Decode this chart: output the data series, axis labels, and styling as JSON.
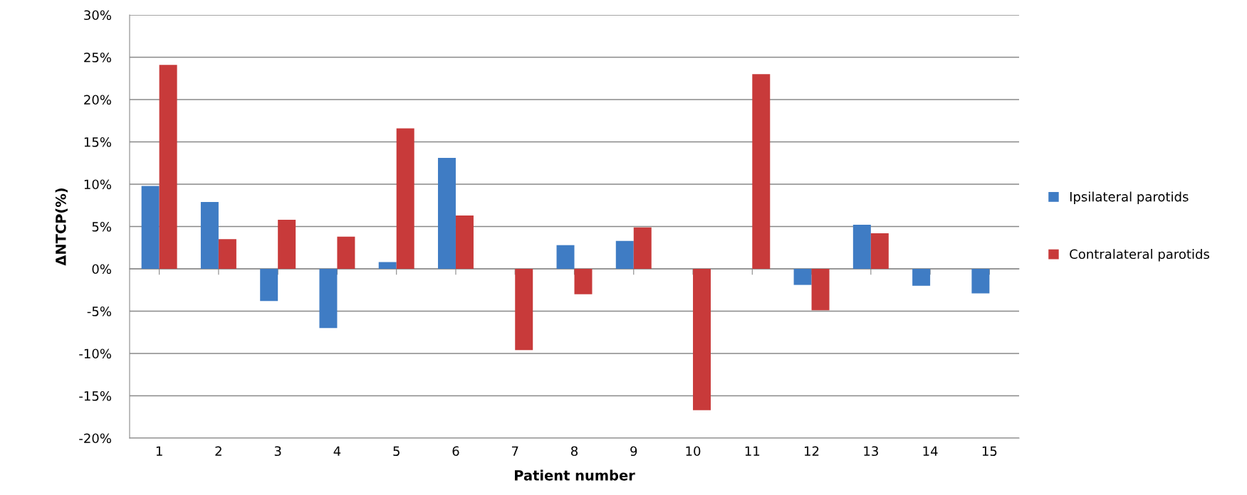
{
  "chart_data": {
    "type": "bar",
    "xlabel": "Patient number",
    "ylabel": "ΔNTCP(%)",
    "categories": [
      "1",
      "2",
      "3",
      "4",
      "5",
      "6",
      "7",
      "8",
      "9",
      "10",
      "11",
      "12",
      "13",
      "14",
      "15"
    ],
    "series": [
      {
        "name": "Ipsilateral parotids",
        "color": "#3f7cc4",
        "values": [
          9.8,
          7.9,
          -3.8,
          -7.0,
          0.8,
          13.1,
          0,
          2.8,
          3.3,
          0,
          0,
          -1.9,
          5.2,
          -2.0,
          -2.9
        ]
      },
      {
        "name": "Contralateral parotids",
        "color": "#c83a3a",
        "values": [
          24.1,
          3.5,
          5.8,
          3.8,
          16.6,
          6.3,
          -9.6,
          -3.0,
          4.9,
          -16.7,
          23.0,
          -4.9,
          4.2,
          0,
          0
        ]
      }
    ],
    "ylim": [
      -20,
      30
    ],
    "yticks": [
      {
        "value": -20,
        "label": "-20%"
      },
      {
        "value": -15,
        "label": "-15%"
      },
      {
        "value": -10,
        "label": "-10%"
      },
      {
        "value": -5,
        "label": "-5%"
      },
      {
        "value": 0,
        "label": "0%"
      },
      {
        "value": 5,
        "label": "5%"
      },
      {
        "value": 10,
        "label": "10%"
      },
      {
        "value": 15,
        "label": "15%"
      },
      {
        "value": 20,
        "label": "20%"
      },
      {
        "value": 25,
        "label": "25%"
      },
      {
        "value": 30,
        "label": "30%"
      }
    ],
    "grid": "y",
    "legend": "right"
  }
}
